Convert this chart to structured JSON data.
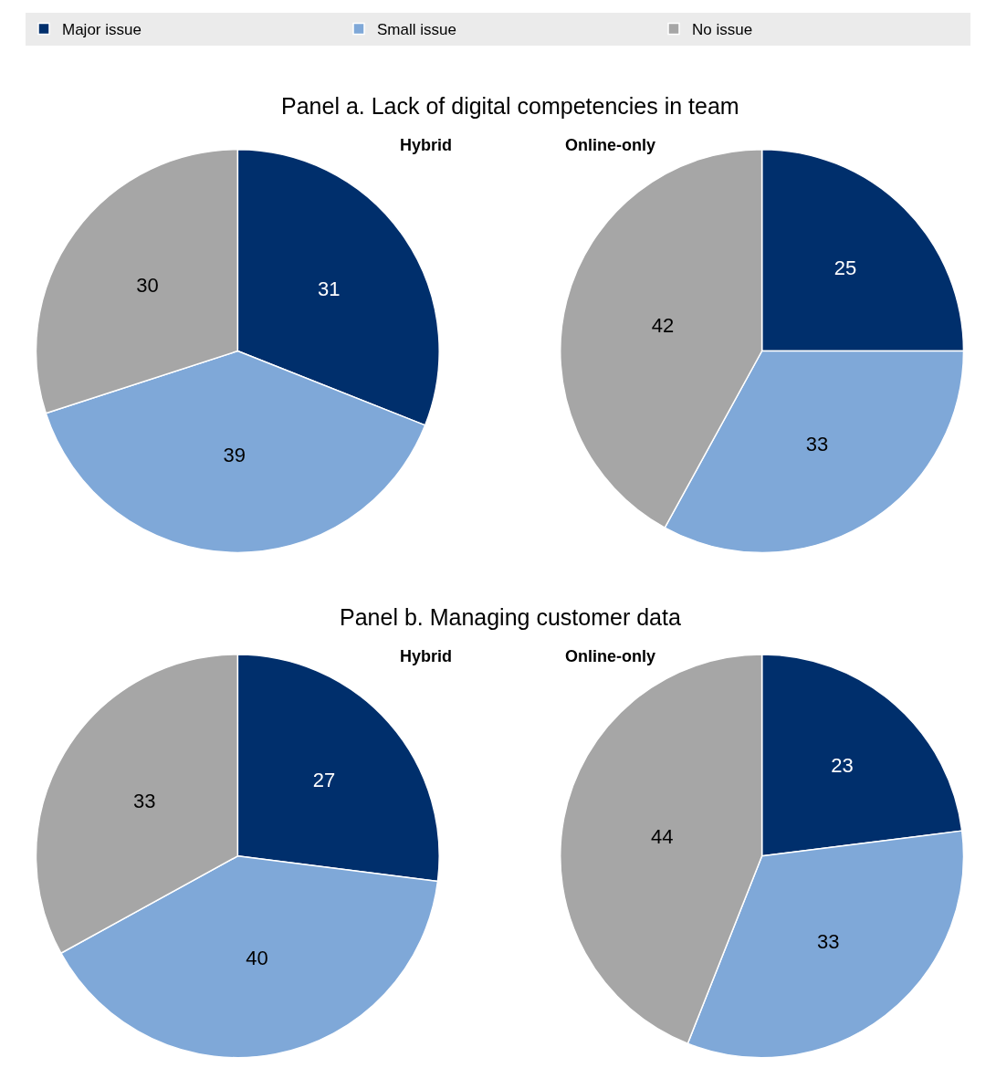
{
  "chart_data": {
    "type": "pie",
    "categories": [
      "Major issue",
      "Small issue",
      "No issue"
    ],
    "colors": [
      "#002f6c",
      "#7fa8d8",
      "#a6a6a6"
    ],
    "data_labels": true,
    "legend": "top",
    "annotations": [
      "Panel a. Lack of digital competencies in team",
      "Panel b. Managing customer data"
    ],
    "series": [
      {
        "name": "Hybrid",
        "values": [
          31,
          39,
          30
        ]
      },
      {
        "name": "Online-only",
        "values": [
          25,
          33,
          42
        ]
      },
      {
        "name": "Hybrid",
        "values": [
          27,
          40,
          33
        ]
      },
      {
        "name": "Online-only",
        "values": [
          23,
          33,
          44
        ]
      }
    ]
  }
}
